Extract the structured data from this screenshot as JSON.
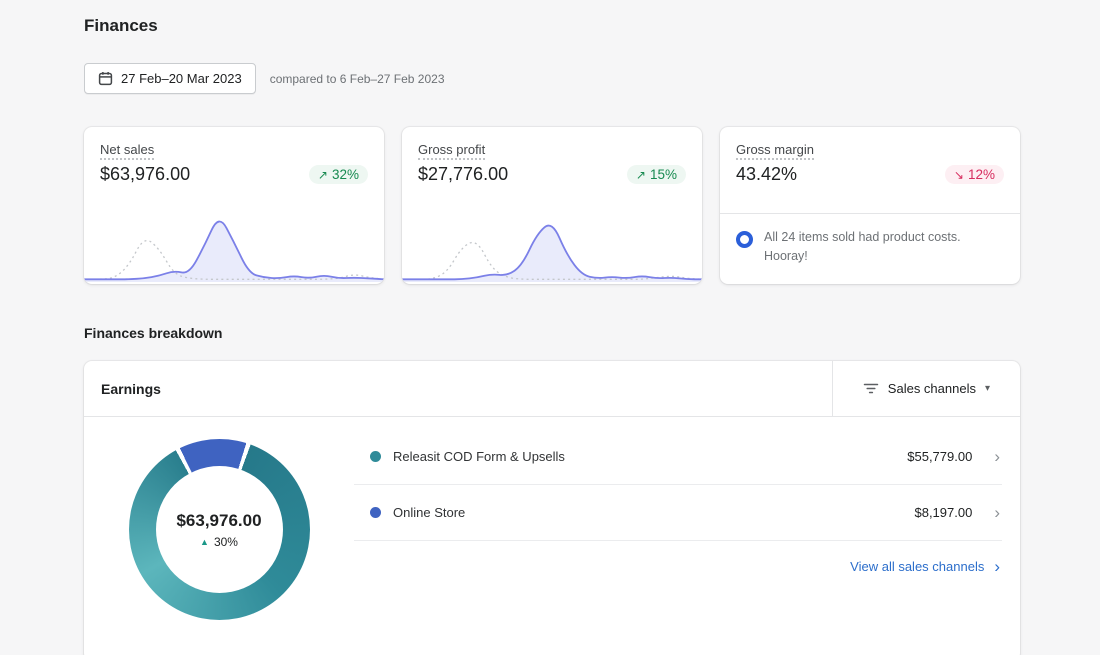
{
  "page": {
    "title": "Finances",
    "breakdown_heading": "Finances breakdown"
  },
  "date_bar": {
    "range_label": "27 Feb–20 Mar 2023",
    "comparison_label": "compared to 6 Feb–27 Feb 2023"
  },
  "icons": {
    "up_arrow": "↗",
    "down_arrow": "↘",
    "caret_down": "▾",
    "chevron_right": "›",
    "triangle_up": "▲"
  },
  "colors": {
    "positive": "#178a50",
    "negative": "#d72c5e",
    "link": "#2c6ecb",
    "spark_line": "#7b80e8",
    "teal": "#2f8b99",
    "blue": "#3f63c1",
    "note_icon_blue": "#2b5fd9"
  },
  "metric_cards": [
    {
      "label": "Net sales",
      "value": "$63,976.00",
      "delta": "32%",
      "direction": "up"
    },
    {
      "label": "Gross profit",
      "value": "$27,776.00",
      "delta": "15%",
      "direction": "up"
    },
    {
      "label": "Gross margin",
      "value": "43.42%",
      "delta": "12%",
      "direction": "down",
      "note": "All 24 items sold had product costs. Hooray!"
    }
  ],
  "earnings": {
    "title": "Earnings",
    "filter_label": "Sales channels",
    "donut_total": "$63,976.00",
    "donut_delta": "30%",
    "rows": [
      {
        "label": "Releasit COD Form & Upsells",
        "value": "$55,779.00",
        "color": "#2f8b99"
      },
      {
        "label": "Online Store",
        "value": "$8,197.00",
        "color": "#3f63c1"
      }
    ],
    "view_all_label": "View all sales channels"
  },
  "chart_data": [
    {
      "type": "line",
      "title": "Net sales trend (current vs previous period)",
      "x": [
        0,
        5,
        10,
        15,
        20,
        25,
        30,
        35,
        40,
        45,
        50,
        55,
        60,
        65,
        70,
        75,
        80,
        85,
        90,
        95,
        100
      ],
      "series": [
        {
          "name": "27 Feb–20 Mar 2023",
          "values": [
            2,
            2,
            2,
            2,
            3,
            6,
            12,
            8,
            40,
            78,
            45,
            9,
            4,
            3,
            6,
            3,
            7,
            3,
            4,
            3,
            2
          ]
        },
        {
          "name": "6 Feb–27 Feb 2023",
          "values": [
            2,
            2,
            3,
            18,
            52,
            38,
            8,
            3,
            2,
            2,
            2,
            2,
            2,
            2,
            2,
            2,
            2,
            3,
            8,
            4,
            2
          ]
        }
      ],
      "legend": false,
      "axes": "hidden"
    },
    {
      "type": "line",
      "title": "Gross profit trend (current vs previous period)",
      "x": [
        0,
        5,
        10,
        15,
        20,
        25,
        30,
        35,
        40,
        45,
        50,
        55,
        60,
        65,
        70,
        75,
        80,
        85,
        90,
        95,
        100
      ],
      "series": [
        {
          "name": "27 Feb–20 Mar 2023",
          "values": [
            2,
            2,
            2,
            2,
            2,
            4,
            8,
            6,
            18,
            55,
            70,
            30,
            7,
            3,
            5,
            3,
            6,
            3,
            4,
            2,
            2
          ]
        },
        {
          "name": "6 Feb–27 Feb 2023",
          "values": [
            2,
            2,
            2,
            10,
            40,
            48,
            14,
            4,
            2,
            2,
            2,
            2,
            2,
            2,
            2,
            2,
            2,
            4,
            6,
            3,
            2
          ]
        }
      ],
      "legend": false,
      "axes": "hidden"
    },
    {
      "type": "pie",
      "title": "Earnings by sales channel",
      "labels": [
        "Releasit COD Form & Upsells",
        "Online Store"
      ],
      "values": [
        55779,
        8197
      ],
      "total_label": "$63,976.00",
      "delta_label": "30%",
      "colors": [
        "#2f8b99",
        "#3f63c1"
      ]
    }
  ]
}
